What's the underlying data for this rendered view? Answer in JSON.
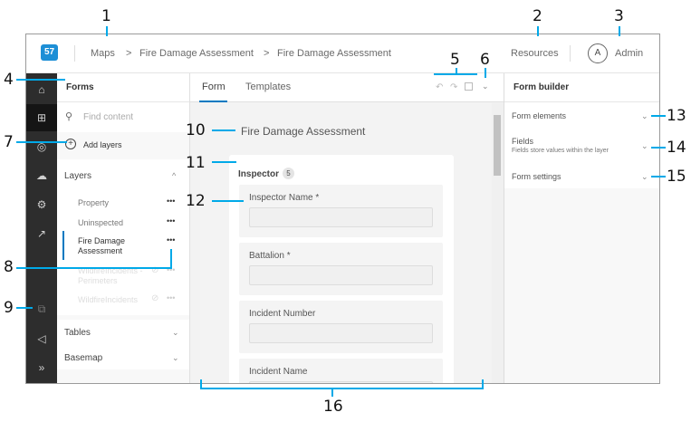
{
  "header": {
    "breadcrumb": [
      "Maps",
      "Fire Damage Assessment",
      "Fire Damage Assessment"
    ],
    "separator": ">",
    "resources": "Resources",
    "avatar_initial": "A",
    "user": "Admin"
  },
  "rail": {
    "icons": [
      "home-icon",
      "layers-icon",
      "target-icon",
      "cloud-icon",
      "gear-icon",
      "share-icon",
      "external-link-icon",
      "megaphone-icon",
      "expand-icon"
    ]
  },
  "left_panel": {
    "title": "Forms",
    "search_placeholder": "Find content",
    "add_layers": "Add layers",
    "layers_header": "Layers",
    "layers": [
      {
        "name": "Property",
        "state": "normal"
      },
      {
        "name": "Uninspected",
        "state": "normal"
      },
      {
        "name": "Fire Damage Assessment",
        "state": "selected"
      },
      {
        "name": "WildfireIncidents - Perimeters",
        "state": "disabled"
      },
      {
        "name": "WildfireIncidents",
        "state": "disabled"
      }
    ],
    "more": "•••",
    "tables": "Tables",
    "basemap": "Basemap"
  },
  "center": {
    "tabs": [
      "Form",
      "Templates"
    ],
    "active_tab": "Form",
    "form_title": "Fire Damage Assessment",
    "group": {
      "name": "Inspector",
      "count": "5"
    },
    "fields": [
      "Inspector Name *",
      "Battalion *",
      "Incident Number",
      "Incident Name"
    ]
  },
  "right_panel": {
    "title": "Form builder",
    "sections": [
      {
        "title": "Form elements",
        "subtitle": ""
      },
      {
        "title": "Fields",
        "subtitle": "Fields store values within the layer"
      },
      {
        "title": "Form settings",
        "subtitle": ""
      }
    ]
  },
  "callouts": [
    "1",
    "2",
    "3",
    "4",
    "5",
    "6",
    "7",
    "8",
    "9",
    "10",
    "11",
    "12",
    "13",
    "14",
    "15",
    "16"
  ],
  "colors": {
    "accent": "#0079c1",
    "callout": "#00a9e8",
    "rail": "#2d2d2d"
  }
}
